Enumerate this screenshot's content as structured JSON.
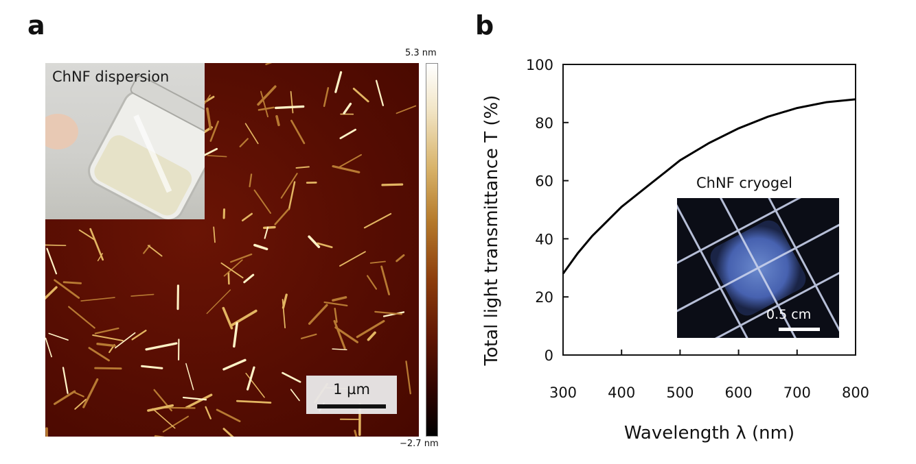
{
  "panels": {
    "a": {
      "letter": "a",
      "inset_label": "ChNF dispersion",
      "scalebar_label": "1 µm",
      "colorbar_max": "5.3 nm",
      "colorbar_min": "−2.7 nm"
    },
    "b": {
      "letter": "b",
      "inset_label": "ChNF cryogel",
      "inset_scalebar_label": "0.5 cm"
    }
  },
  "chart_data": {
    "type": "line",
    "title": "",
    "xlabel": "Wavelength λ (nm)",
    "ylabel": "Total light transmittance T (%)",
    "xlim": [
      300,
      800
    ],
    "ylim": [
      0,
      100
    ],
    "xticks": [
      300,
      400,
      500,
      600,
      700,
      800
    ],
    "yticks": [
      0,
      20,
      40,
      60,
      80,
      100
    ],
    "grid": false,
    "series": [
      {
        "x": [
          300,
          325,
          350,
          375,
          400,
          425,
          450,
          475,
          500,
          550,
          600,
          650,
          700,
          750,
          800
        ],
        "y": [
          28,
          35,
          41,
          46,
          51,
          55,
          59,
          63,
          67,
          73,
          78,
          82,
          85,
          87,
          88
        ],
        "color": "#000000"
      }
    ]
  }
}
